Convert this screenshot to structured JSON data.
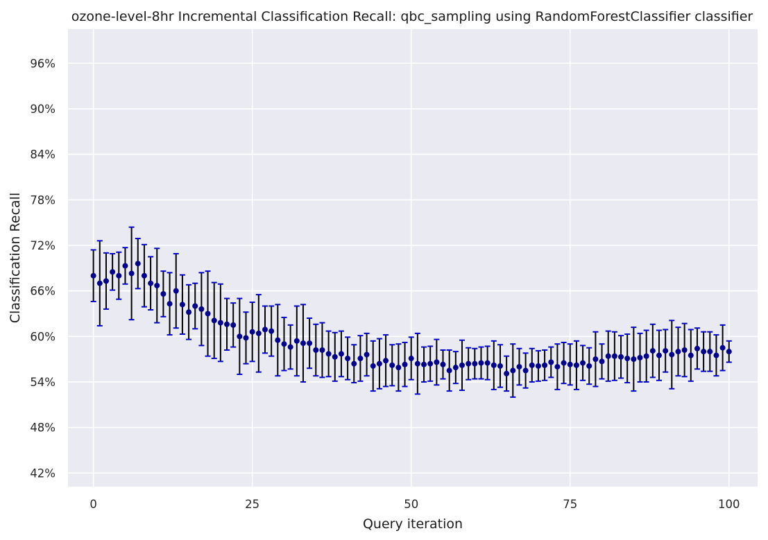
{
  "chart_data": {
    "type": "scatter",
    "title": "ozone-level-8hr Incremental Classification Recall: qbc_sampling using RandomForestClassifier classifier",
    "xlabel": "Query iteration",
    "ylabel": "Classification Recall",
    "xlim": [
      -4,
      104.5
    ],
    "ylim": [
      40.2,
      100.5
    ],
    "x_ticks": [
      0,
      25,
      50,
      75,
      100
    ],
    "x_tick_labels": [
      "0",
      "25",
      "50",
      "75",
      "100"
    ],
    "y_ticks": [
      42,
      48,
      54,
      60,
      66,
      72,
      78,
      84,
      90,
      96
    ],
    "y_tick_labels": [
      "42%",
      "48%",
      "54%",
      "60%",
      "66%",
      "72%",
      "78%",
      "84%",
      "90%",
      "96%"
    ],
    "grid": true,
    "colors": {
      "background": "#eaeaf2",
      "grid": "#ffffff",
      "marker": "#00008b",
      "errorbar": "#000000",
      "cap": "#0000cd"
    },
    "series": [
      {
        "x": [
          0,
          1,
          2,
          3,
          4,
          5,
          6,
          7,
          8,
          9,
          10,
          11,
          12,
          13,
          14,
          15,
          16,
          17,
          18,
          19,
          20,
          21,
          22,
          23,
          24,
          25,
          26,
          27,
          28,
          29,
          30,
          31,
          32,
          33,
          34,
          35,
          36,
          37,
          38,
          39,
          40,
          41,
          42,
          43,
          44,
          45,
          46,
          47,
          48,
          49,
          50,
          51,
          52,
          53,
          54,
          55,
          56,
          57,
          58,
          59,
          60,
          61,
          62,
          63,
          64,
          65,
          66,
          67,
          68,
          69,
          70,
          71,
          72,
          73,
          74,
          75,
          76,
          77,
          78,
          79,
          80,
          81,
          82,
          83,
          84,
          85,
          86,
          87,
          88,
          89,
          90,
          91,
          92,
          93,
          94,
          95,
          96,
          97,
          98,
          99,
          100
        ],
        "y": [
          68.0,
          67.0,
          67.3,
          68.5,
          68.0,
          69.3,
          68.3,
          69.6,
          68.0,
          67.0,
          66.7,
          65.6,
          64.3,
          66.0,
          64.2,
          63.2,
          64.0,
          63.6,
          63.0,
          62.1,
          61.8,
          61.6,
          61.5,
          60.0,
          59.8,
          60.6,
          60.4,
          60.9,
          60.7,
          59.5,
          59.0,
          58.6,
          59.4,
          59.1,
          59.1,
          58.2,
          58.2,
          57.7,
          57.3,
          57.7,
          57.1,
          56.4,
          57.1,
          57.6,
          56.1,
          56.4,
          56.8,
          56.2,
          55.9,
          56.3,
          57.1,
          56.4,
          56.3,
          56.4,
          56.6,
          56.3,
          55.5,
          55.9,
          56.2,
          56.4,
          56.4,
          56.5,
          56.5,
          56.2,
          56.1,
          55.1,
          55.5,
          56.0,
          55.5,
          56.2,
          56.1,
          56.2,
          56.6,
          56.0,
          56.5,
          56.3,
          56.2,
          56.5,
          56.1,
          57.0,
          56.7,
          57.4,
          57.4,
          57.3,
          57.1,
          57.0,
          57.2,
          57.4,
          58.1,
          57.5,
          58.1,
          57.6,
          58.0,
          58.2,
          57.5,
          58.4,
          58.0,
          58.0,
          57.5,
          58.5,
          58.0
        ],
        "y_err": [
          3.4,
          5.6,
          3.7,
          2.4,
          3.1,
          2.4,
          6.1,
          3.3,
          4.1,
          3.5,
          4.9,
          3.0,
          4.1,
          4.9,
          3.9,
          3.6,
          3.0,
          4.8,
          5.6,
          5.0,
          5.1,
          3.4,
          2.9,
          5.0,
          3.4,
          3.9,
          5.1,
          3.1,
          3.3,
          4.7,
          3.5,
          2.9,
          4.6,
          5.1,
          3.3,
          3.4,
          3.6,
          3.0,
          3.2,
          3.0,
          2.8,
          2.5,
          3.0,
          2.8,
          3.3,
          3.3,
          3.4,
          2.7,
          3.1,
          2.9,
          2.8,
          4.0,
          2.3,
          2.3,
          3.0,
          1.9,
          2.7,
          2.1,
          3.3,
          2.1,
          2.0,
          2.1,
          2.2,
          3.2,
          2.8,
          2.3,
          3.5,
          2.4,
          2.3,
          2.2,
          2.0,
          2.0,
          2.0,
          3.0,
          2.7,
          2.7,
          3.2,
          2.3,
          2.4,
          3.6,
          2.3,
          3.3,
          3.2,
          2.8,
          3.2,
          4.2,
          3.2,
          3.4,
          3.5,
          3.3,
          2.8,
          4.5,
          3.2,
          3.5,
          3.4,
          2.7,
          2.6,
          2.6,
          2.7,
          3.0,
          1.4
        ]
      }
    ]
  }
}
